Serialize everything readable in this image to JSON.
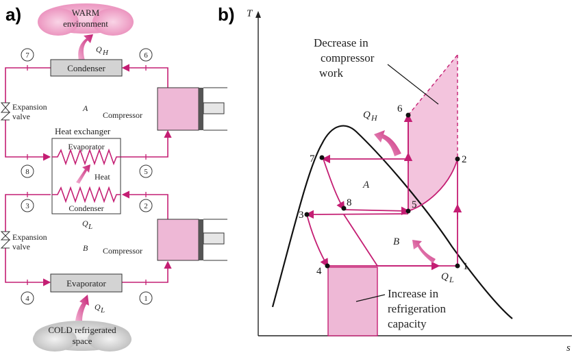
{
  "colors": {
    "refrigerant_line": "#c41e73",
    "fill_pink": "#eeb8d6",
    "fill_pink_light": "#f3c4dd",
    "component_gray": "#d3d3d3",
    "heat_arrow_start": "#f0a0cc",
    "heat_arrow_end": "#c41e73",
    "curve": "#111111"
  },
  "panel_a": {
    "label": "a)",
    "warm_cloud": [
      "WARM",
      "environment"
    ],
    "cold_cloud": [
      "COLD refrigerated",
      "space"
    ],
    "qh": "Q",
    "qh_sub": "H",
    "ql": "Q",
    "ql_sub": "L",
    "condenser_top": "Condenser",
    "evaporator_bottom": "Evaporator",
    "hx_title": "Heat exchanger",
    "hx_evaporator": "Evaporator",
    "hx_condenser": "Condenser",
    "hx_heat": "Heat",
    "expansion_valve": [
      "Expansion",
      "valve"
    ],
    "compressor": "Compressor",
    "cycle_a": "A",
    "cycle_b": "B",
    "state_numbers": [
      "7",
      "6",
      "8",
      "5",
      "3",
      "2",
      "4",
      "1"
    ]
  },
  "panel_b": {
    "label": "b)",
    "axis_t": "T",
    "axis_s": "s",
    "qh": "Q",
    "qh_sub": "H",
    "ql": "Q",
    "ql_sub": "L",
    "region_a": "A",
    "region_b": "B",
    "points": [
      "1",
      "2",
      "3",
      "4",
      "5",
      "6",
      "7",
      "8"
    ],
    "note_top": [
      "Decrease in",
      "compressor",
      "work"
    ],
    "note_bottom": [
      "Increase in",
      "refrigeration",
      "capacity"
    ]
  }
}
